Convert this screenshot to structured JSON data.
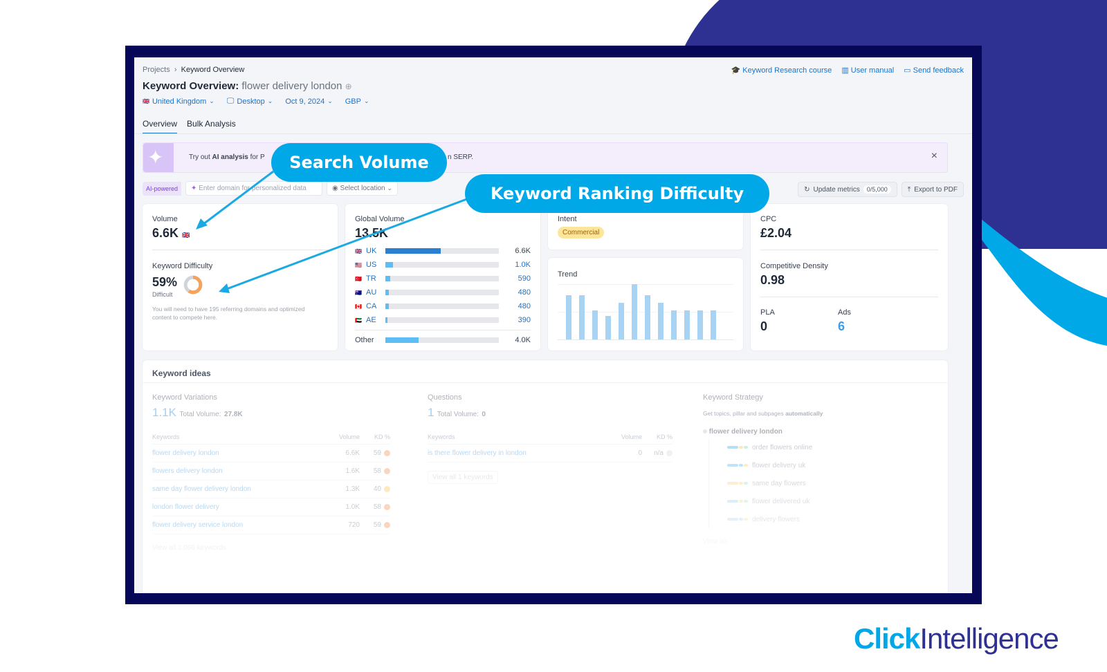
{
  "breadcrumb": {
    "root": "Projects",
    "current": "Keyword Overview"
  },
  "header": {
    "title_prefix": "Keyword Overview:",
    "keyword": "flower delivery london",
    "links": [
      "Keyword Research course",
      "User manual",
      "Send feedback"
    ],
    "filters": {
      "country": "United Kingdom",
      "device": "Desktop",
      "date": "Oct 9, 2024",
      "currency": "GBP"
    }
  },
  "tabs": [
    "Overview",
    "Bulk Analysis"
  ],
  "banner": {
    "text_prefix": "Try out",
    "bold": "AI analysis",
    "text_mid": "for P",
    "text_suffix": "n SERP.",
    "close": "×"
  },
  "toolbar": {
    "ai_badge": "AI-powered",
    "domain_placeholder": "Enter domain for personalized data",
    "location": "Select location",
    "update": "Update metrics",
    "update_count": "0/5,000",
    "export": "Export to PDF"
  },
  "volume": {
    "label": "Volume",
    "value": "6.6K"
  },
  "difficulty": {
    "label": "Keyword Difficulty",
    "value": "59%",
    "level": "Difficult",
    "note": "You will need to have 195 referring domains and optimized content to compete here.",
    "percent": 59,
    "color": "#f5a35c"
  },
  "global": {
    "label": "Global Volume",
    "value": "13.5K",
    "countries": [
      {
        "code": "UK",
        "value": "6.6K",
        "pct": 49
      },
      {
        "code": "US",
        "value": "1.0K",
        "pct": 7
      },
      {
        "code": "TR",
        "value": "590",
        "pct": 4
      },
      {
        "code": "AU",
        "value": "480",
        "pct": 3
      },
      {
        "code": "CA",
        "value": "480",
        "pct": 3
      },
      {
        "code": "AE",
        "value": "390",
        "pct": 2
      }
    ],
    "other": {
      "label": "Other",
      "value": "4.0K",
      "pct": 29
    }
  },
  "intent": {
    "label": "Intent",
    "value": "Commercial"
  },
  "trend": {
    "label": "Trend",
    "values": [
      80,
      80,
      52,
      43,
      66,
      100,
      80,
      66,
      52,
      52,
      52,
      52
    ]
  },
  "cpc": {
    "label": "CPC",
    "value": "£2.04"
  },
  "density": {
    "label": "Competitive Density",
    "value": "0.98"
  },
  "pla": {
    "label": "PLA",
    "value": "0"
  },
  "ads": {
    "label": "Ads",
    "value": "6"
  },
  "ideas": {
    "title": "Keyword ideas",
    "variations": {
      "label": "Keyword Variations",
      "count": "1.1K",
      "total_label": "Total Volume:",
      "total": "27.8K",
      "headers": [
        "Keywords",
        "Volume",
        "KD %"
      ],
      "rows": [
        {
          "k": "flower delivery london",
          "v": "6.6K",
          "d": "59",
          "c": "#f7b58a"
        },
        {
          "k": "flowers delivery london",
          "v": "1.6K",
          "d": "58",
          "c": "#f7b58a"
        },
        {
          "k": "same day flower delivery london",
          "v": "1.3K",
          "d": "40",
          "c": "#fbd88a"
        },
        {
          "k": "london flower delivery",
          "v": "1.0K",
          "d": "58",
          "c": "#f7b58a"
        },
        {
          "k": "flower delivery service london",
          "v": "720",
          "d": "59",
          "c": "#f7b58a"
        }
      ],
      "view_all": "View all 1,066 keywords"
    },
    "questions": {
      "label": "Questions",
      "count": "1",
      "total_label": "Total Volume:",
      "total": "0",
      "headers": [
        "Keywords",
        "Volume",
        "KD %"
      ],
      "rows": [
        {
          "k": "is there flower delivery in london",
          "v": "0",
          "d": "n/a",
          "c": "#e5e7eb"
        }
      ],
      "view_all": "View all 1 keywords"
    },
    "strategy": {
      "label": "Keyword Strategy",
      "desc_prefix": "Get topics, pillar and subpages",
      "desc_bold": "automatically",
      "root": "flower delivery london",
      "items": [
        "order flowers online",
        "flower delivery uk",
        "same day flowers",
        "flower delivered uk",
        "delivery flowers"
      ],
      "view_all": "View all"
    }
  },
  "callouts": {
    "volume": "Search Volume",
    "difficulty": "Keyword Ranking Difficulty"
  },
  "brand": {
    "click": "Click",
    "intelligence": "Intelligence"
  }
}
